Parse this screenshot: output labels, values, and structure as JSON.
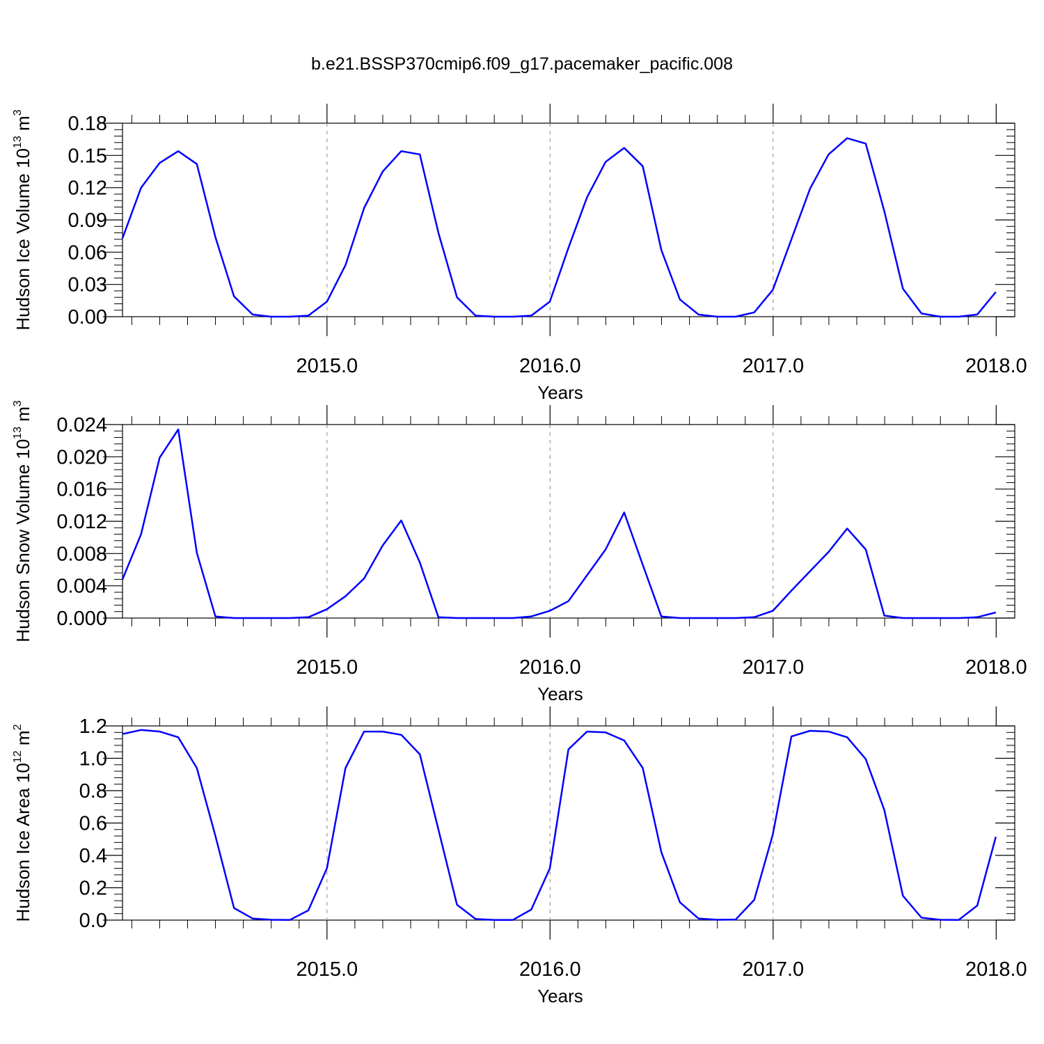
{
  "page_title": "b.e21.BSSP370cmip6.f09_g17.pacemaker_pacific.008",
  "chart_data": [
    {
      "type": "line",
      "ylabel": "Hudson Ice Volume 10",
      "ylabel_exp": "13",
      "ylabel_unit": " m",
      "ylabel_unit_exp": "3",
      "xlabel": "Years",
      "xlim": [
        2014.0833,
        2018.0833
      ],
      "ylim": [
        0,
        0.18
      ],
      "y_ticks": [
        "0.00",
        "0.03",
        "0.06",
        "0.09",
        "0.12",
        "0.15",
        "0.18"
      ],
      "x_ticks": [
        "2015.0",
        "2016.0",
        "2017.0",
        "2018.0"
      ],
      "line_color": "#0000ff",
      "start_year": 2014.0833,
      "step": 0.0833,
      "values": [
        0.073,
        0.12,
        0.143,
        0.154,
        0.142,
        0.074,
        0.019,
        0.002,
        0.0,
        0.0,
        0.001,
        0.014,
        0.048,
        0.101,
        0.135,
        0.154,
        0.151,
        0.078,
        0.018,
        0.001,
        0.0,
        0.0,
        0.001,
        0.014,
        0.064,
        0.111,
        0.144,
        0.157,
        0.14,
        0.062,
        0.016,
        0.002,
        0.0,
        0.0,
        0.004,
        0.025,
        0.072,
        0.119,
        0.151,
        0.166,
        0.161,
        0.098,
        0.026,
        0.003,
        0.0,
        0.0,
        0.002,
        0.023
      ]
    },
    {
      "type": "line",
      "ylabel": "Hudson Snow Volume 10",
      "ylabel_exp": "13",
      "ylabel_unit": " m",
      "ylabel_unit_exp": "3",
      "xlabel": "Years",
      "xlim": [
        2014.0833,
        2018.0833
      ],
      "ylim": [
        0,
        0.024
      ],
      "y_ticks": [
        "0.000",
        "0.004",
        "0.008",
        "0.012",
        "0.016",
        "0.020",
        "0.024"
      ],
      "x_ticks": [
        "2015.0",
        "2016.0",
        "2017.0",
        "2018.0"
      ],
      "line_color": "#0000ff",
      "start_year": 2014.0833,
      "step": 0.0833,
      "values": [
        0.0048,
        0.0104,
        0.0199,
        0.0234,
        0.0081,
        0.0002,
        0.0,
        0.0,
        0.0,
        0.0,
        0.0001,
        0.0011,
        0.0027,
        0.0049,
        0.009,
        0.0121,
        0.0069,
        0.0001,
        0.0,
        0.0,
        0.0,
        0.0,
        0.0002,
        0.0009,
        0.0021,
        0.0053,
        0.0085,
        0.0131,
        0.0066,
        0.0002,
        0.0,
        0.0,
        0.0,
        0.0,
        0.0001,
        0.0009,
        0.0034,
        0.0058,
        0.0082,
        0.0111,
        0.0085,
        0.0003,
        0.0,
        0.0,
        0.0,
        0.0,
        0.0001,
        0.0007
      ]
    },
    {
      "type": "line",
      "ylabel": "Hudson Ice Area 10",
      "ylabel_exp": "12",
      "ylabel_unit": " m",
      "ylabel_unit_exp": "2",
      "xlabel": "Years",
      "xlim": [
        2014.0833,
        2018.0833
      ],
      "ylim": [
        0,
        1.2
      ],
      "y_ticks": [
        "0.0",
        "0.2",
        "0.4",
        "0.6",
        "0.8",
        "1.0",
        "1.2"
      ],
      "x_ticks": [
        "2015.0",
        "2016.0",
        "2017.0",
        "2018.0"
      ],
      "line_color": "#0000ff",
      "start_year": 2014.0833,
      "step": 0.0833,
      "values": [
        1.15,
        1.175,
        1.165,
        1.13,
        0.94,
        0.52,
        0.075,
        0.01,
        0.002,
        0.001,
        0.06,
        0.32,
        0.94,
        1.165,
        1.165,
        1.145,
        1.025,
        0.56,
        0.095,
        0.007,
        0.001,
        0.001,
        0.065,
        0.32,
        1.055,
        1.165,
        1.16,
        1.11,
        0.94,
        0.42,
        0.11,
        0.01,
        0.002,
        0.004,
        0.125,
        0.53,
        1.135,
        1.17,
        1.165,
        1.13,
        0.995,
        0.68,
        0.15,
        0.015,
        0.002,
        0.001,
        0.09,
        0.515
      ]
    }
  ]
}
